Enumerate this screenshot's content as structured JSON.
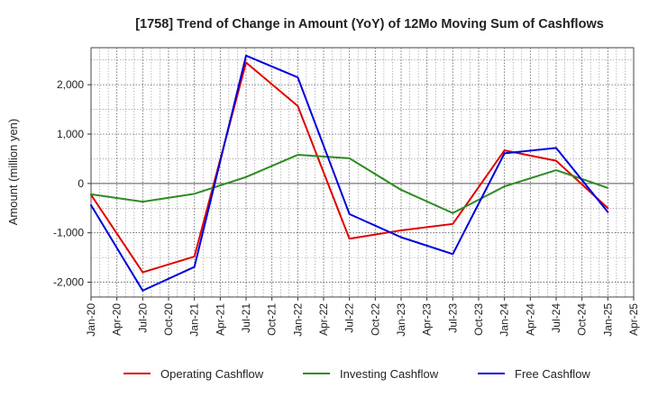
{
  "chart_data": {
    "type": "line",
    "title": "[1758]  Trend of Change in Amount (YoY) of 12Mo Moving Sum of Cashflows",
    "xlabel": "",
    "ylabel": "Amount (million yen)",
    "ylim": [
      -2300,
      2750
    ],
    "yticks": [
      2000,
      1000,
      0,
      -1000,
      -2000
    ],
    "ytick_labels": [
      "2,000",
      "1,000",
      "0",
      "-1,000",
      "-2,000"
    ],
    "categories": [
      "Jan-20",
      "Apr-20",
      "Jul-20",
      "Oct-20",
      "Jan-21",
      "Apr-21",
      "Jul-21",
      "Oct-21",
      "Jan-22",
      "Apr-22",
      "Jul-22",
      "Oct-22",
      "Jan-23",
      "Apr-23",
      "Jul-23",
      "Oct-23",
      "Jan-24",
      "Apr-24",
      "Jul-24",
      "Oct-24",
      "Jan-25",
      "Apr-25"
    ],
    "grid": true,
    "legend_position": "bottom",
    "series": [
      {
        "name": "Operating Cashflow",
        "color": "#e00000",
        "points": [
          {
            "x": "Jan-20",
            "y": -230
          },
          {
            "x": "Jul-20",
            "y": -1800
          },
          {
            "x": "Jan-21",
            "y": -1480
          },
          {
            "x": "Jul-21",
            "y": 2450
          },
          {
            "x": "Jan-22",
            "y": 1570
          },
          {
            "x": "Jul-22",
            "y": -1120
          },
          {
            "x": "Jan-23",
            "y": -950
          },
          {
            "x": "Jul-23",
            "y": -820
          },
          {
            "x": "Jan-24",
            "y": 670
          },
          {
            "x": "Jul-24",
            "y": 460
          },
          {
            "x": "Jan-25",
            "y": -500
          }
        ]
      },
      {
        "name": "Investing Cashflow",
        "color": "#2e8b22",
        "points": [
          {
            "x": "Jan-20",
            "y": -220
          },
          {
            "x": "Jul-20",
            "y": -370
          },
          {
            "x": "Jan-21",
            "y": -210
          },
          {
            "x": "Jul-21",
            "y": 130
          },
          {
            "x": "Jan-22",
            "y": 580
          },
          {
            "x": "Jul-22",
            "y": 510
          },
          {
            "x": "Jan-23",
            "y": -130
          },
          {
            "x": "Jul-23",
            "y": -600
          },
          {
            "x": "Jan-24",
            "y": -60
          },
          {
            "x": "Jul-24",
            "y": 270
          },
          {
            "x": "Jan-25",
            "y": -90
          }
        ]
      },
      {
        "name": "Free Cashflow",
        "color": "#0000dd",
        "points": [
          {
            "x": "Jan-20",
            "y": -440
          },
          {
            "x": "Jul-20",
            "y": -2170
          },
          {
            "x": "Jan-21",
            "y": -1690
          },
          {
            "x": "Jul-21",
            "y": 2590
          },
          {
            "x": "Jan-22",
            "y": 2150
          },
          {
            "x": "Jul-22",
            "y": -620
          },
          {
            "x": "Jan-23",
            "y": -1090
          },
          {
            "x": "Jul-23",
            "y": -1430
          },
          {
            "x": "Jan-24",
            "y": 610
          },
          {
            "x": "Jul-24",
            "y": 720
          },
          {
            "x": "Jan-25",
            "y": -580
          }
        ]
      }
    ]
  }
}
